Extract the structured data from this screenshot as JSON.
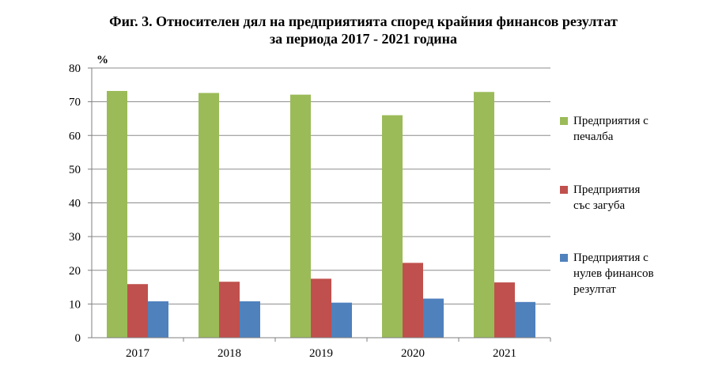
{
  "title_line1": "Фиг. 3. Относителен дял на предприятията според крайния финансов резултат",
  "title_line2": "за периода 2017 - 2021 година",
  "chart_data": {
    "type": "bar",
    "unit_label": "%",
    "categories": [
      "2017",
      "2018",
      "2019",
      "2020",
      "2021"
    ],
    "series": [
      {
        "name": "Предприятия  с\nпечалба",
        "color": "#9BBB59",
        "values": [
          73.2,
          72.6,
          72.1,
          66.0,
          72.9
        ]
      },
      {
        "name": "Предприятия\nсъс загуба",
        "color": "#C0504D",
        "values": [
          15.9,
          16.6,
          17.5,
          22.2,
          16.4
        ]
      },
      {
        "name": "Предприятия  с\nнулев финансов\nрезултат",
        "color": "#4F81BD",
        "values": [
          10.8,
          10.8,
          10.4,
          11.6,
          10.6
        ]
      }
    ],
    "ylim": [
      0,
      80
    ],
    "yticks": [
      "0",
      "10",
      "20",
      "30",
      "40",
      "50",
      "60",
      "70",
      "80"
    ],
    "grid": true,
    "legend_position": "right"
  }
}
